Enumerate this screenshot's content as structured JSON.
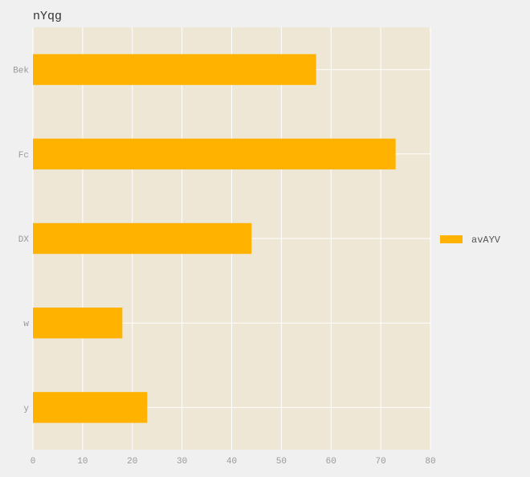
{
  "chart_data": {
    "type": "bar",
    "orientation": "horizontal",
    "title": "nYqg",
    "categories": [
      "Bek",
      "Fc",
      "DX",
      "w",
      "y"
    ],
    "series": [
      {
        "name": "avAYV",
        "values": [
          57,
          73,
          44,
          18,
          23
        ]
      }
    ],
    "xlim": [
      0,
      80
    ],
    "x_ticks": [
      0,
      10,
      20,
      30,
      40,
      50,
      60,
      70,
      80
    ],
    "xlabel": "",
    "ylabel": "",
    "grid": true,
    "legend_position": "right",
    "colors": {
      "bar": "#ffb300",
      "plot_background": "#efe7d6",
      "figure_background": "#f0f0f0",
      "grid": "#ffffff"
    }
  }
}
